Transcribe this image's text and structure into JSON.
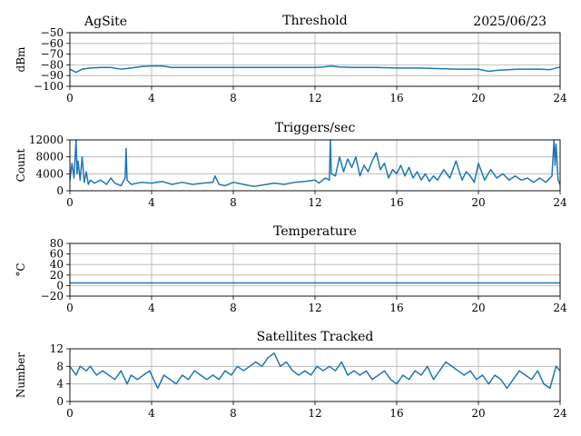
{
  "header": {
    "site": "AgSite",
    "date": "2025/06/23"
  },
  "series_color": "#1f77b4",
  "chart_data": [
    {
      "type": "line",
      "title": "Threshold",
      "ylabel": "dBm",
      "xlim": [
        0,
        24
      ],
      "ylim": [
        -100,
        -50
      ],
      "x_ticks": [
        "0",
        "4",
        "8",
        "12",
        "16",
        "20",
        "24"
      ],
      "y_ticks": [
        "−50",
        "−60",
        "−70",
        "−80",
        "−90",
        "−100"
      ],
      "grid": true,
      "series": [
        {
          "x": [
            0,
            0.3,
            0.6,
            1.0,
            1.5,
            2.0,
            2.5,
            3.0,
            3.5,
            4.0,
            4.5,
            5.0,
            6,
            7,
            8,
            9,
            10,
            11,
            12,
            12.4,
            12.8,
            13.2,
            14,
            15,
            16,
            17,
            18,
            19,
            20,
            20.5,
            21,
            22,
            23,
            23.5,
            24
          ],
          "y": [
            -84,
            -87,
            -84,
            -83,
            -82.5,
            -82.5,
            -84,
            -83,
            -81.5,
            -81,
            -81,
            -82.5,
            -82.5,
            -82.5,
            -82.5,
            -82.5,
            -82.5,
            -82.5,
            -82.5,
            -82,
            -81,
            -82,
            -82.5,
            -82.5,
            -83,
            -83,
            -83.5,
            -84,
            -84,
            -86,
            -85,
            -84,
            -84,
            -84.5,
            -82
          ]
        }
      ]
    },
    {
      "type": "line",
      "title": "Triggers/sec",
      "ylabel": "Count",
      "xlim": [
        0,
        24
      ],
      "ylim": [
        0,
        12000
      ],
      "x_ticks": [
        "0",
        "4",
        "8",
        "12",
        "16",
        "20",
        "24"
      ],
      "y_ticks": [
        "12000",
        "8000",
        "4000",
        "0"
      ],
      "grid": true,
      "series": [
        {
          "x": [
            0,
            0.1,
            0.2,
            0.3,
            0.35,
            0.4,
            0.5,
            0.6,
            0.7,
            0.8,
            0.9,
            1.0,
            1.2,
            1.5,
            1.8,
            2.0,
            2.2,
            2.5,
            2.7,
            2.75,
            2.8,
            3.0,
            3.5,
            4.0,
            4.5,
            5.0,
            5.5,
            6.0,
            6.5,
            7.0,
            7.1,
            7.3,
            7.6,
            8.0,
            8.5,
            9.0,
            9.5,
            10.0,
            10.5,
            11.0,
            11.5,
            12.0,
            12.2,
            12.5,
            12.7,
            12.75,
            12.8,
            13.0,
            13.2,
            13.4,
            13.6,
            13.8,
            14.0,
            14.2,
            14.4,
            14.6,
            14.8,
            15.0,
            15.2,
            15.4,
            15.6,
            15.8,
            16.0,
            16.2,
            16.4,
            16.6,
            16.8,
            17.0,
            17.2,
            17.4,
            17.6,
            17.8,
            18.0,
            18.3,
            18.6,
            18.9,
            19.2,
            19.4,
            19.6,
            19.8,
            20.0,
            20.3,
            20.6,
            20.9,
            21.2,
            21.5,
            21.8,
            22.1,
            22.4,
            22.7,
            23.0,
            23.3,
            23.6,
            23.7,
            23.75,
            23.8,
            23.9,
            24.0
          ],
          "y": [
            2500,
            6500,
            3000,
            12000,
            4000,
            7000,
            2500,
            8000,
            2000,
            4500,
            1500,
            2500,
            1800,
            2500,
            1500,
            3000,
            1800,
            1200,
            3000,
            10000,
            2500,
            1500,
            2000,
            1800,
            2200,
            1500,
            2000,
            1500,
            1800,
            2000,
            3500,
            1500,
            1200,
            2000,
            1500,
            1000,
            1400,
            1800,
            1500,
            2000,
            2200,
            2500,
            1800,
            3000,
            2500,
            12000,
            4000,
            3500,
            8000,
            4500,
            7500,
            5500,
            8000,
            3500,
            6000,
            4500,
            7000,
            9000,
            5000,
            6500,
            3000,
            5000,
            4000,
            6000,
            3500,
            5500,
            3000,
            4500,
            2500,
            4000,
            2200,
            3500,
            2500,
            5000,
            3000,
            7000,
            2500,
            4500,
            3500,
            2000,
            6500,
            2500,
            5000,
            3000,
            4000,
            2500,
            3500,
            2500,
            3000,
            2000,
            3000,
            2000,
            3500,
            12000,
            6000,
            11000,
            2500,
            1500
          ]
        }
      ]
    },
    {
      "type": "line",
      "title": "Temperature",
      "ylabel": "°C",
      "xlim": [
        0,
        24
      ],
      "ylim": [
        -20,
        80
      ],
      "x_ticks": [
        "0",
        "4",
        "8",
        "12",
        "16",
        "20",
        "24"
      ],
      "y_ticks": [
        "80",
        "60",
        "40",
        "20",
        "0",
        "−20"
      ],
      "grid": true,
      "series": [
        {
          "x": [
            0,
            24
          ],
          "y": [
            5,
            5
          ]
        }
      ]
    },
    {
      "type": "line",
      "title": "Satellites Tracked",
      "ylabel": "Number",
      "xlim": [
        0,
        24
      ],
      "ylim": [
        0,
        12
      ],
      "x_ticks": [
        "0",
        "4",
        "8",
        "12",
        "16",
        "20",
        "24"
      ],
      "y_ticks": [
        "12",
        "8",
        "4",
        "0"
      ],
      "grid": true,
      "series": [
        {
          "x": [
            0,
            0.3,
            0.5,
            0.8,
            1.0,
            1.3,
            1.6,
            1.9,
            2.2,
            2.5,
            2.8,
            3.0,
            3.3,
            3.6,
            3.9,
            4.1,
            4.3,
            4.6,
            4.9,
            5.2,
            5.5,
            5.8,
            6.1,
            6.4,
            6.7,
            7.0,
            7.3,
            7.6,
            7.9,
            8.2,
            8.5,
            8.8,
            9.1,
            9.4,
            9.7,
            10.0,
            10.3,
            10.6,
            10.9,
            11.2,
            11.5,
            11.8,
            12.1,
            12.4,
            12.7,
            13.0,
            13.3,
            13.6,
            13.9,
            14.2,
            14.5,
            14.8,
            15.1,
            15.4,
            15.7,
            16.0,
            16.3,
            16.6,
            16.9,
            17.2,
            17.5,
            17.8,
            18.1,
            18.4,
            18.7,
            19.0,
            19.3,
            19.6,
            19.9,
            20.2,
            20.5,
            20.8,
            21.1,
            21.4,
            21.7,
            22.0,
            22.3,
            22.6,
            22.9,
            23.2,
            23.5,
            23.8,
            24.0
          ],
          "y": [
            8,
            6,
            8,
            7,
            8,
            6,
            7,
            6,
            5,
            7,
            4,
            6,
            5,
            6,
            7,
            5,
            3,
            6,
            5,
            4,
            6,
            5,
            7,
            6,
            5,
            6,
            5,
            7,
            6,
            8,
            7,
            8,
            9,
            8,
            10,
            11,
            8,
            9,
            7,
            6,
            7,
            6,
            8,
            7,
            8,
            7,
            9,
            6,
            7,
            6,
            7,
            5,
            6,
            7,
            5,
            4,
            6,
            5,
            7,
            6,
            8,
            5,
            7,
            9,
            8,
            7,
            6,
            7,
            5,
            6,
            4,
            6,
            5,
            3,
            5,
            7,
            6,
            5,
            7,
            4,
            3,
            8,
            7
          ]
        }
      ]
    }
  ]
}
